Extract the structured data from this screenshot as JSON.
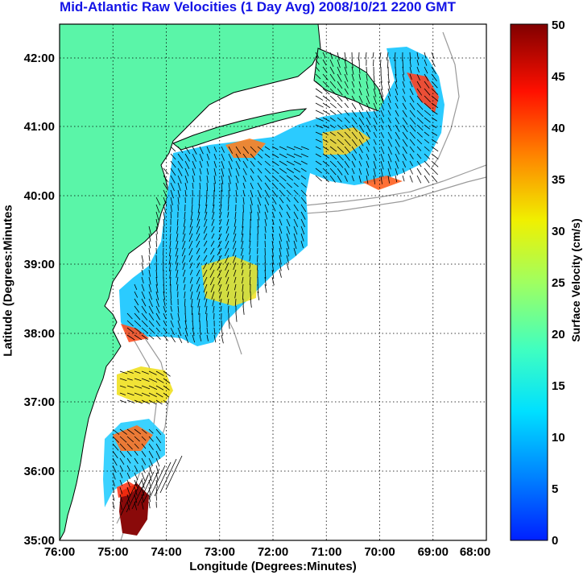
{
  "title": "Mid-Atlantic Raw Velocities (1 Day Avg) 2008/10/21 2200 GMT",
  "axes": {
    "xlabel": "Longitude (Degrees:Minutes)",
    "ylabel": "Latitude (Degrees:Minutes",
    "x_ticks": [
      "76:00",
      "75:00",
      "74:00",
      "73:00",
      "72:00",
      "71:00",
      "70:00",
      "69:00",
      "68:00"
    ],
    "y_ticks": [
      "35:00",
      "36:00",
      "37:00",
      "38:00",
      "39:00",
      "40:00",
      "41:00",
      "42:00"
    ],
    "grid": true,
    "grid_style": "dotted"
  },
  "colorbar": {
    "label": "Surface Velocity (cm/s)",
    "ticks": [
      "0",
      "5",
      "10",
      "15",
      "20",
      "25",
      "30",
      "35",
      "40",
      "45",
      "50"
    ],
    "min": 0,
    "max": 50,
    "colormap": "jet"
  },
  "colors": {
    "land": "#5af5a8",
    "title": "#1414e6",
    "coast_outline": "#000000",
    "bathymetry": "#9a9a9a"
  }
}
